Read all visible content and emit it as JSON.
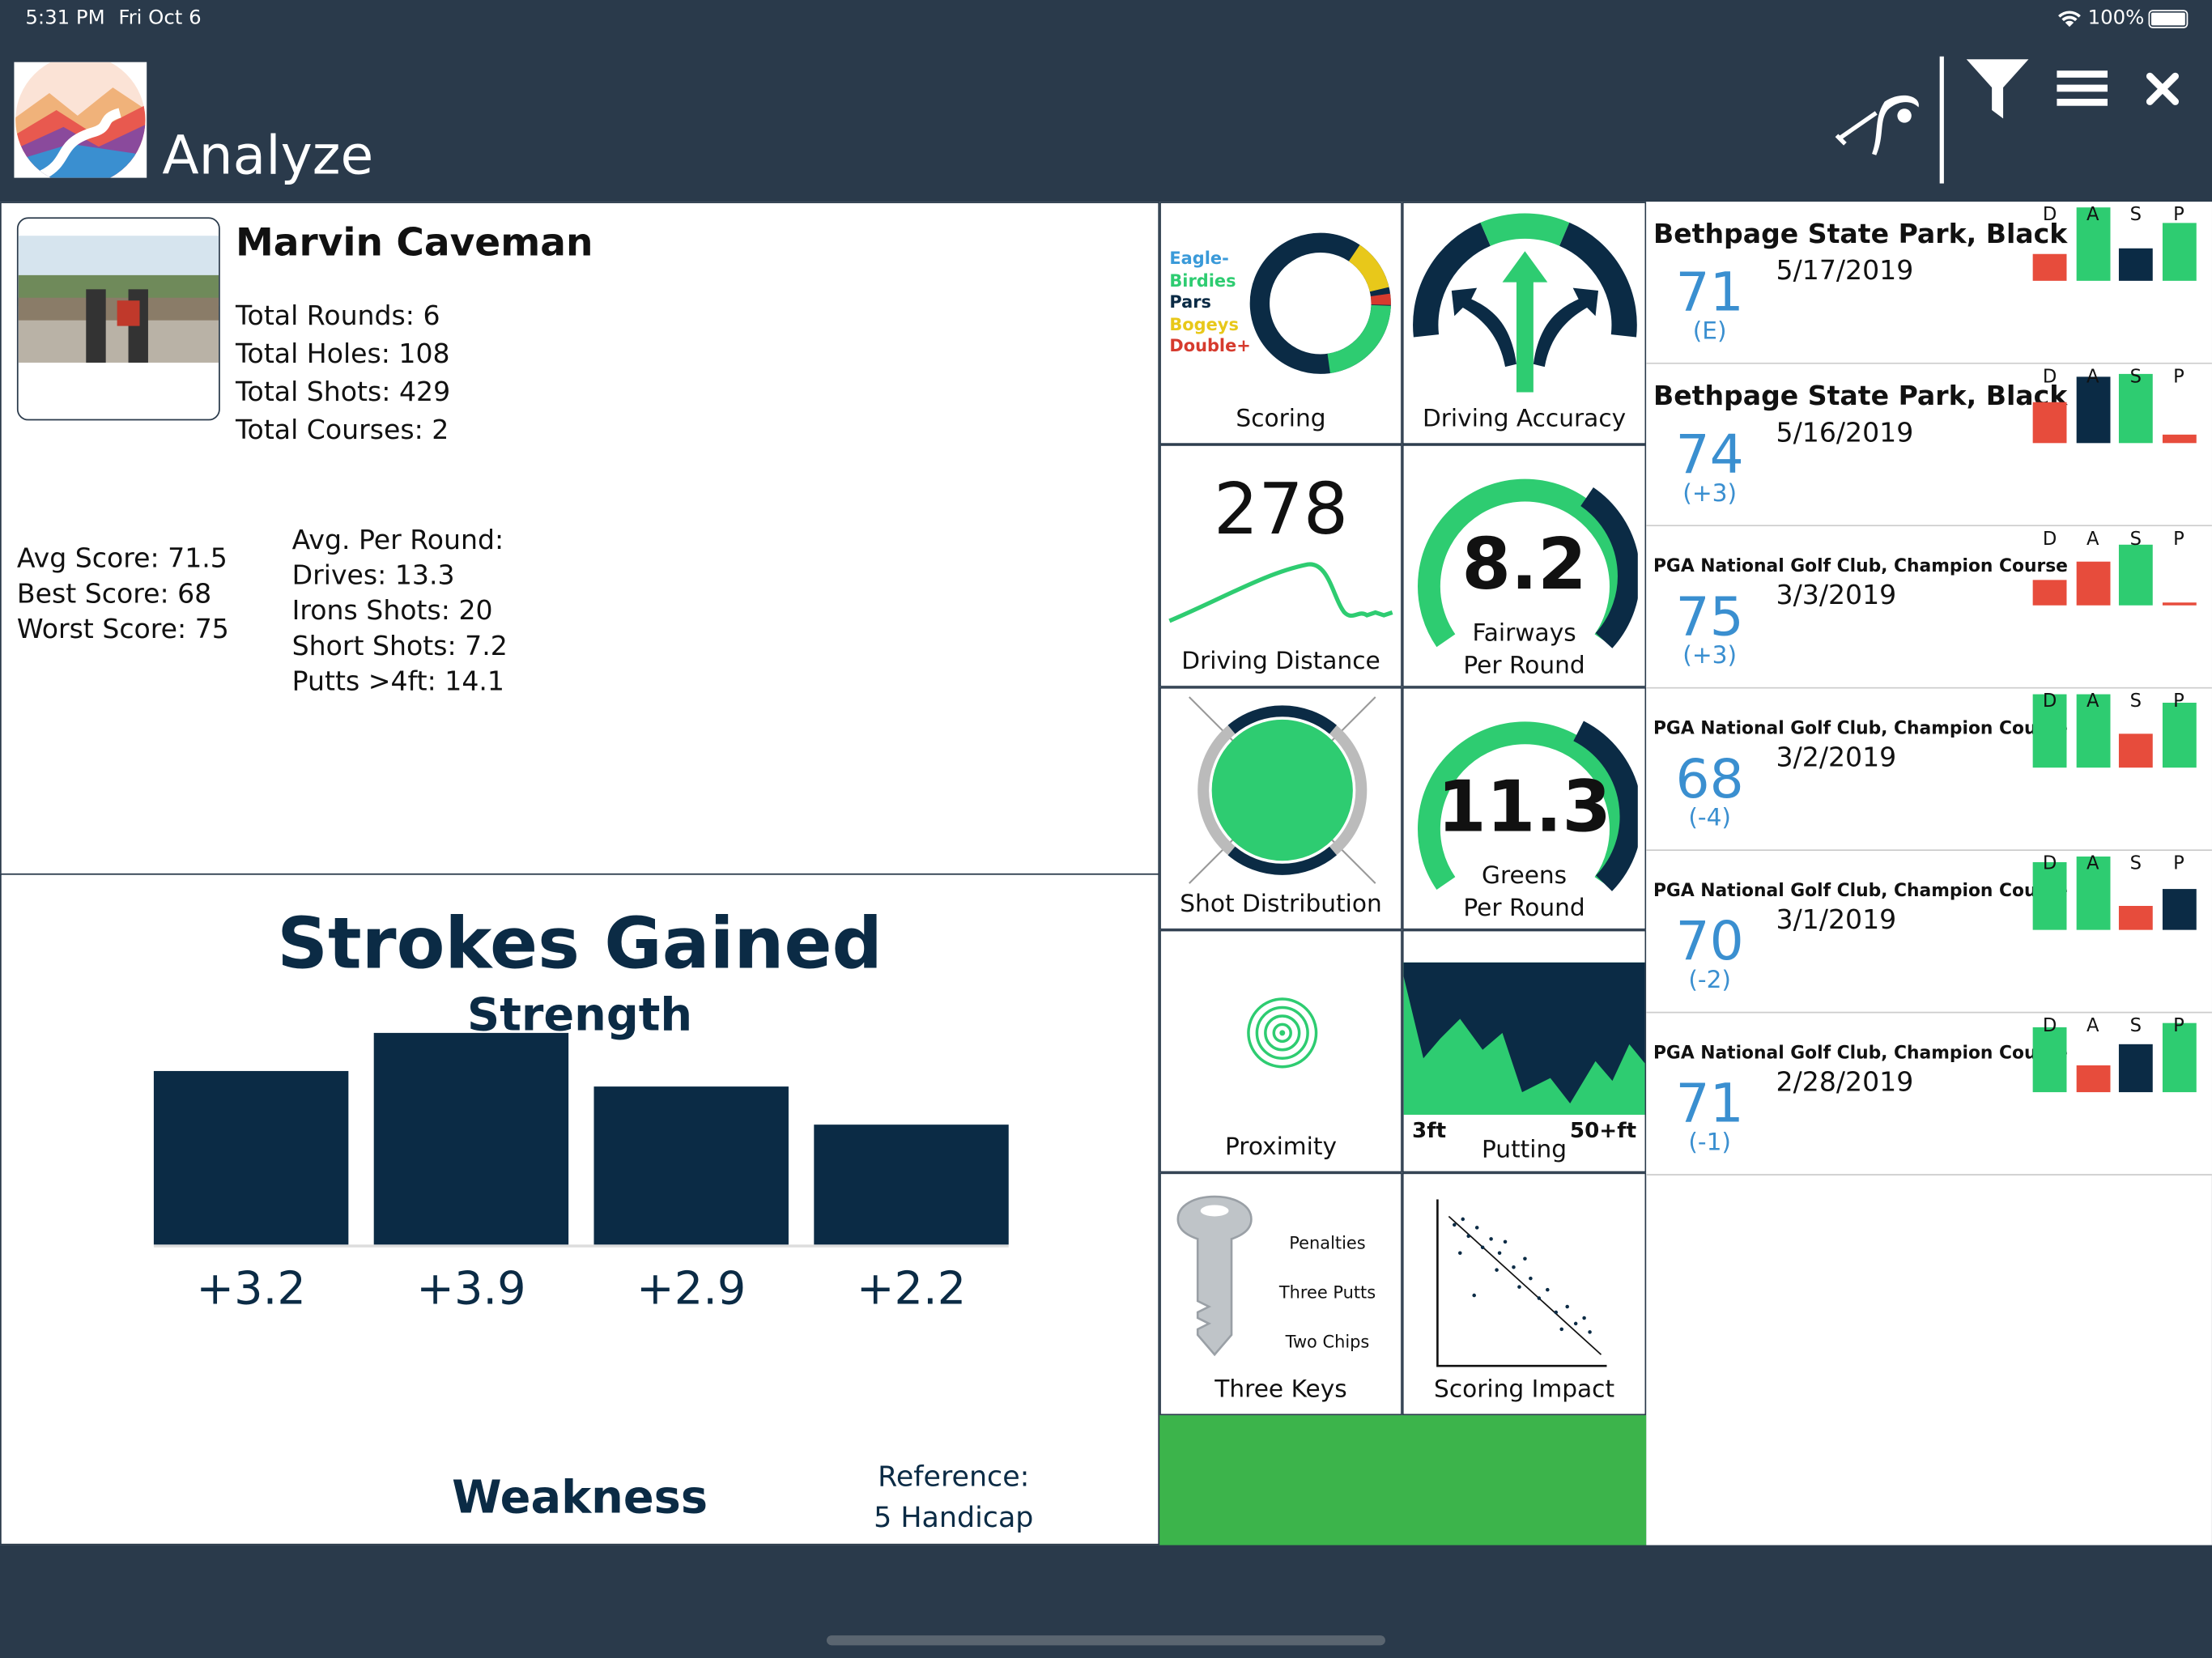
{
  "status_bar": {
    "time": "5:31 PM",
    "date": "Fri Oct 6",
    "battery": "100%"
  },
  "header": {
    "title": "Analyze",
    "icons": [
      "app-logo",
      "golfer-icon",
      "filter-icon",
      "menu-icon",
      "close-icon"
    ]
  },
  "player": {
    "name": "Marvin Caveman",
    "total_rounds": "Total Rounds: 6",
    "total_holes": "Total Holes: 108",
    "total_shots": "Total Shots: 429",
    "total_courses": "Total Courses: 2",
    "avg_score": "Avg Score: 71.5",
    "best_score": "Best Score: 68",
    "worst_score": "Worst Score: 75",
    "per_round_title": "Avg. Per Round:",
    "drives": "Drives: 13.3",
    "irons": "Irons Shots: 20",
    "short": "Short Shots: 7.2",
    "putts": "Putts >4ft: 14.1"
  },
  "strokes_gained": {
    "title": "Strokes Gained",
    "strength": "Strength",
    "weakness": "Weakness",
    "reference_label": "Reference:",
    "reference_value": "5 Handicap",
    "chart_data": {
      "type": "bar",
      "categories": [
        "",
        "",
        "",
        ""
      ],
      "values": [
        3.2,
        3.9,
        2.9,
        2.2
      ],
      "value_labels": [
        "+3.2",
        "+3.9",
        "+2.9",
        "+2.2"
      ],
      "ylim": [
        0,
        3.9
      ]
    }
  },
  "tiles": {
    "scoring": {
      "label": "Scoring",
      "legend": [
        "Eagle-",
        "Birdies",
        "Pars",
        "Bogeys",
        "Double+"
      ],
      "legend_colors": [
        "#3a9ad9",
        "#2ecc71",
        "#0b2b45",
        "#e8c81a",
        "#d63b2e"
      ]
    },
    "driving_accuracy": {
      "label": "Driving Accuracy"
    },
    "driving_distance": {
      "label": "Driving Distance",
      "value": "278"
    },
    "fairways": {
      "value": "8.2",
      "label1": "Fairways",
      "label2": "Per Round"
    },
    "shot_distribution": {
      "label": "Shot Distribution"
    },
    "greens": {
      "value": "11.3",
      "label1": "Greens",
      "label2": "Per Round"
    },
    "proximity": {
      "label": "Proximity"
    },
    "putting": {
      "label": "Putting",
      "left": "3ft",
      "right": "50+ft"
    },
    "three_keys": {
      "label": "Three Keys",
      "items": [
        "Penalties",
        "Three Putts",
        "Two Chips"
      ]
    },
    "scoring_impact": {
      "label": "Scoring Impact"
    }
  },
  "rounds": [
    {
      "course": "Bethpage State Park, Black",
      "date": "5/17/2019",
      "score": "71",
      "to_par": "(E)",
      "bars": [
        {
          "l": "D",
          "v": 0.36,
          "c": "red"
        },
        {
          "l": "A",
          "v": 1.0,
          "c": "green"
        },
        {
          "l": "S",
          "v": 0.45,
          "c": "navy"
        },
        {
          "l": "P",
          "v": 0.78,
          "c": "green"
        }
      ]
    },
    {
      "course": "Bethpage State Park, Black",
      "date": "5/16/2019",
      "score": "74",
      "to_par": "(+3)",
      "bars": [
        {
          "l": "D",
          "v": 0.55,
          "c": "red"
        },
        {
          "l": "A",
          "v": 0.9,
          "c": "navy"
        },
        {
          "l": "S",
          "v": 0.95,
          "c": "green"
        },
        {
          "l": "P",
          "v": 0.12,
          "c": "red"
        }
      ]
    },
    {
      "course": "PGA National Golf Club, Champion Course",
      "date": "3/3/2019",
      "score": "75",
      "to_par": "(+3)",
      "bars": [
        {
          "l": "D",
          "v": 0.34,
          "c": "red"
        },
        {
          "l": "A",
          "v": 0.6,
          "c": "red"
        },
        {
          "l": "S",
          "v": 0.82,
          "c": "green"
        },
        {
          "l": "P",
          "v": 0.02,
          "c": "red"
        }
      ]
    },
    {
      "course": "PGA National Golf Club, Champion Course",
      "date": "3/2/2019",
      "score": "68",
      "to_par": "(-4)",
      "bars": [
        {
          "l": "D",
          "v": 1.0,
          "c": "green"
        },
        {
          "l": "A",
          "v": 1.0,
          "c": "green"
        },
        {
          "l": "S",
          "v": 0.46,
          "c": "red"
        },
        {
          "l": "P",
          "v": 0.88,
          "c": "green"
        }
      ]
    },
    {
      "course": "PGA National Golf Club, Champion Course",
      "date": "3/1/2019",
      "score": "70",
      "to_par": "(-2)",
      "bars": [
        {
          "l": "D",
          "v": 0.92,
          "c": "green"
        },
        {
          "l": "A",
          "v": 1.0,
          "c": "green"
        },
        {
          "l": "S",
          "v": 0.33,
          "c": "red"
        },
        {
          "l": "P",
          "v": 0.55,
          "c": "navy"
        }
      ]
    },
    {
      "course": "PGA National Golf Club, Champion Course",
      "date": "2/28/2019",
      "score": "71",
      "to_par": "(-1)",
      "bars": [
        {
          "l": "D",
          "v": 0.88,
          "c": "green"
        },
        {
          "l": "A",
          "v": 0.36,
          "c": "red"
        },
        {
          "l": "S",
          "v": 0.65,
          "c": "navy"
        },
        {
          "l": "P",
          "v": 0.95,
          "c": "green"
        }
      ]
    }
  ],
  "colors": {
    "navy": "#0b2b45",
    "green": "#2ecc71",
    "red": "#e74c3c",
    "header_bg": "#2a3a4b",
    "score_blue": "#3a8fd0"
  }
}
